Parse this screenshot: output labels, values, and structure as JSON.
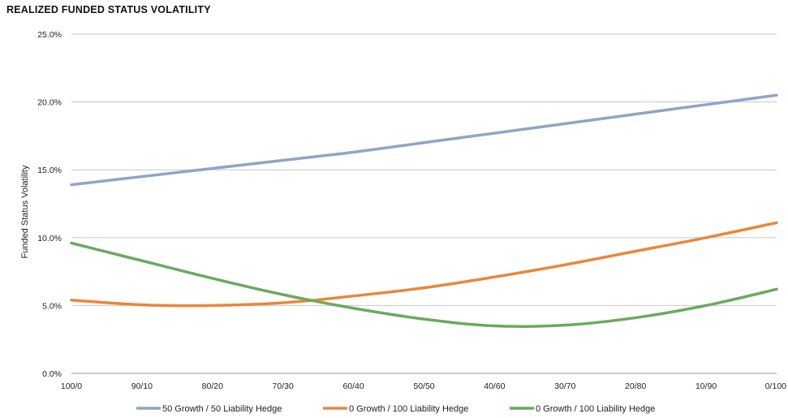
{
  "chart_data": {
    "type": "line",
    "title": "REALIZED FUNDED STATUS VOLATILITY",
    "ylabel": "Funded Status Volatility",
    "xlabel": "",
    "categories": [
      "100/0",
      "90/10",
      "80/20",
      "70/30",
      "60/40",
      "50/50",
      "40/60",
      "30/70",
      "20/80",
      "10/90",
      "0/100"
    ],
    "ylim": [
      0,
      25
    ],
    "yticks": [
      "0.0%",
      "5.0%",
      "10.0%",
      "15.0%",
      "20.0%",
      "25.0%"
    ],
    "grid": true,
    "legend_position": "bottom",
    "series": [
      {
        "name": "50 Growth / 50 Liability Hedge",
        "color": "#8fa5c6",
        "values": [
          13.9,
          14.5,
          15.1,
          15.7,
          16.3,
          17.0,
          17.7,
          18.4,
          19.1,
          19.8,
          20.5
        ]
      },
      {
        "name": "0 Growth / 100 Liability Hedge",
        "color": "#e8883a",
        "values": [
          5.4,
          5.05,
          5.0,
          5.2,
          5.7,
          6.3,
          7.1,
          8.0,
          9.0,
          10.0,
          11.1
        ]
      },
      {
        "name": "0 Growth / 100 Liability Hedge",
        "color": "#6aaa5e",
        "values": [
          9.6,
          8.3,
          7.0,
          5.8,
          4.8,
          4.0,
          3.5,
          3.55,
          4.1,
          5.0,
          6.2
        ]
      }
    ]
  }
}
